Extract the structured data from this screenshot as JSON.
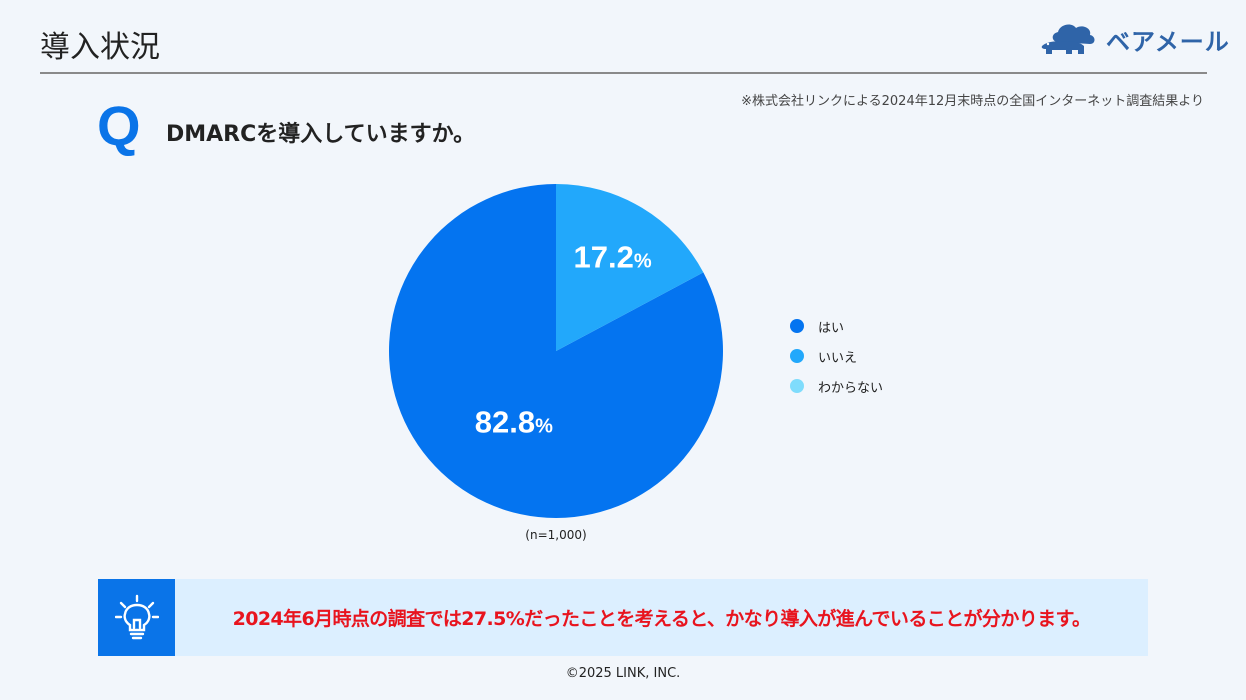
{
  "header": {
    "title": "導入状況",
    "logo_text": "ベアメール"
  },
  "source_note": "※株式会社リンクによる2024年12月末時点の全国インターネット調査結果より",
  "question": {
    "mark": "Q",
    "text": "DMARCを導入していますか。"
  },
  "chart_data": {
    "type": "pie",
    "slices": [
      {
        "name": "はい",
        "value": 82.8,
        "label": "82.8",
        "unit": "%",
        "color": "#0474f0"
      },
      {
        "name": "いいえ",
        "value": 17.2,
        "label": "17.2",
        "unit": "%",
        "color": "#22a8fb"
      },
      {
        "name": "わからない",
        "value": 0,
        "label": "",
        "unit": "",
        "color": "#7fdcfc"
      }
    ],
    "legend": [
      "はい",
      "いいえ",
      "わからない"
    ],
    "legend_position": "right",
    "note": "(n=1,000)"
  },
  "conclusion": {
    "icon": "lightbulb-icon",
    "text": "2024年6月時点の調査では27.5%だったことを考えると、かなり導入が進んでいることが分かります。"
  },
  "footer": {
    "copyright_symbol": "©",
    "text": "2025 LINK, INC."
  }
}
